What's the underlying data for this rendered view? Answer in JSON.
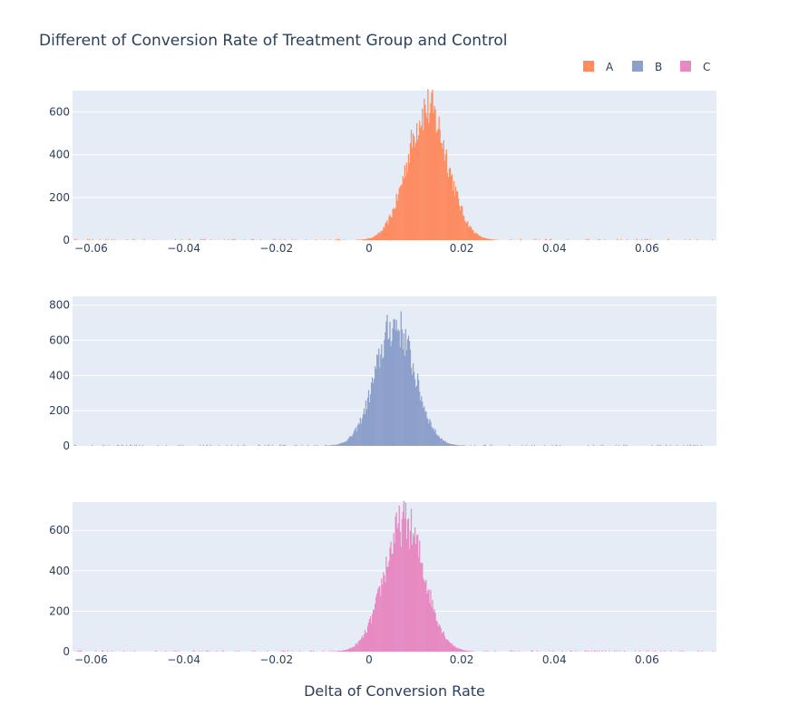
{
  "chart_data": {
    "type": "histogram",
    "title": "Different of Conversion Rate of Treatment Group and Control",
    "xlabel": "Delta of Conversion Rate",
    "xlim": [
      -0.064,
      0.075
    ],
    "x_ticks": [
      "−0.06",
      "−0.04",
      "−0.02",
      "0",
      "0.02",
      "0.04",
      "0.06"
    ],
    "x_tick_values": [
      -0.06,
      -0.04,
      -0.02,
      0,
      0.02,
      0.04,
      0.06
    ],
    "legend_placement": "top-right",
    "grid": true,
    "series": [
      {
        "name": "A",
        "color": "#fc8d62",
        "mean": 0.0125,
        "std": 0.0043,
        "peak": 620,
        "range": [
          -0.003,
          0.029
        ],
        "ylim": [
          0,
          700
        ],
        "y_ticks": [
          "0",
          "200",
          "400",
          "600"
        ],
        "y_tick_values": [
          0,
          200,
          400,
          600
        ]
      },
      {
        "name": "B",
        "color": "#8da0cb",
        "mean": 0.0055,
        "std": 0.0042,
        "peak": 690,
        "range": [
          -0.009,
          0.021
        ],
        "ylim": [
          0,
          850
        ],
        "y_ticks": [
          "0",
          "200",
          "400",
          "600",
          "800"
        ],
        "y_tick_values": [
          0,
          200,
          400,
          600,
          800
        ]
      },
      {
        "name": "C",
        "color": "#e78ac3",
        "mean": 0.0075,
        "std": 0.0043,
        "peak": 640,
        "range": [
          -0.007,
          0.023
        ],
        "ylim": [
          0,
          740
        ],
        "y_ticks": [
          "0",
          "200",
          "400",
          "600"
        ],
        "y_tick_values": [
          0,
          200,
          400,
          600
        ]
      }
    ]
  }
}
